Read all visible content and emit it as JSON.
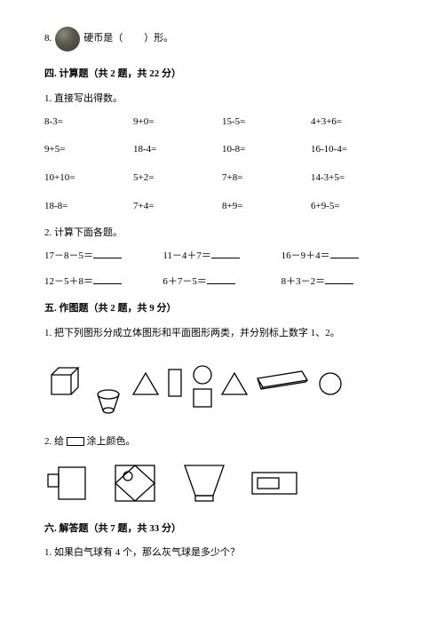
{
  "q8": {
    "num": "8.",
    "textAfter": "硬币是（",
    "textEnd": "）形。"
  },
  "section4": {
    "title": "四. 计算题（共 2 题，共 22 分）",
    "p1": {
      "title": "1. 直接写出得数。",
      "items": [
        "8-3=",
        "9+0=",
        "15-5=",
        "4+3+6=",
        "9+5=",
        "18-4=",
        "10-8=",
        "16-10-4=",
        "10+10=",
        "5+2=",
        "7+8=",
        "14-3+5=",
        "18-8=",
        "7+4=",
        "8+9=",
        "6+9-5="
      ]
    },
    "p2": {
      "title": "2. 计算下面各题。",
      "items": [
        "17－8－5＝",
        "11－4＋7＝",
        "16－9＋4＝",
        "12－5＋8＝",
        "6＋7－5＝",
        "8＋3－2＝"
      ]
    }
  },
  "section5": {
    "title": "五. 作图题（共 2 题，共 9 分）",
    "p1": "1. 把下列图形分成立体图形和平面图形两类，并分别标上数字 1、2。",
    "p2a": "2. 给",
    "p2b": "涂上颜色。"
  },
  "section6": {
    "title": "六. 解答题（共 7 题，共 33 分）",
    "p1": "1. 如果白气球有 4 个，那么灰气球是多少个？"
  },
  "style": {
    "stroke": "#000000",
    "strokeWidth": 1.2,
    "fill": "none"
  }
}
